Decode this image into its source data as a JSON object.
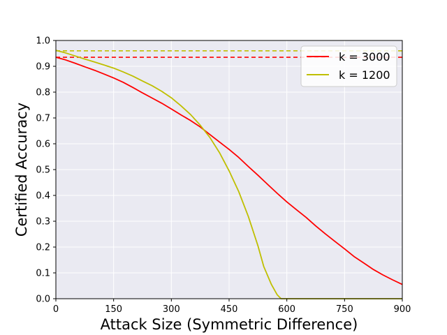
{
  "chart_data": {
    "type": "line",
    "title": "",
    "xlabel": "Attack Size (Symmetric Difference)",
    "ylabel": "Certified Accuracy",
    "xlim": [
      0,
      900
    ],
    "ylim": [
      0.0,
      1.0
    ],
    "x_ticks": [
      0,
      150,
      300,
      450,
      600,
      750,
      900
    ],
    "x_tick_labels": [
      "0",
      "150",
      "300",
      "450",
      "600",
      "750",
      "900"
    ],
    "y_ticks": [
      0.0,
      0.1,
      0.2,
      0.3,
      0.4,
      0.5,
      0.6,
      0.7,
      0.8,
      0.9,
      1.0
    ],
    "y_tick_labels": [
      "0.0",
      "0.1",
      "0.2",
      "0.3",
      "0.4",
      "0.5",
      "0.6",
      "0.7",
      "0.8",
      "0.9",
      "1.0"
    ],
    "grid": true,
    "background": "#eaeaf2",
    "legend_position": "top-right",
    "series": [
      {
        "name": "k = 3000",
        "color": "#ff0000",
        "baseline": 0.935,
        "x": [
          0,
          25,
          50,
          75,
          100,
          125,
          150,
          175,
          200,
          225,
          250,
          275,
          300,
          325,
          350,
          375,
          400,
          425,
          450,
          475,
          500,
          525,
          550,
          575,
          600,
          625,
          650,
          675,
          700,
          725,
          750,
          775,
          800,
          825,
          850,
          875,
          900
        ],
        "y": [
          0.935,
          0.925,
          0.912,
          0.898,
          0.885,
          0.87,
          0.855,
          0.838,
          0.818,
          0.797,
          0.777,
          0.757,
          0.735,
          0.712,
          0.69,
          0.665,
          0.636,
          0.607,
          0.578,
          0.547,
          0.512,
          0.478,
          0.443,
          0.408,
          0.375,
          0.345,
          0.315,
          0.282,
          0.251,
          0.222,
          0.193,
          0.163,
          0.138,
          0.113,
          0.092,
          0.073,
          0.055
        ]
      },
      {
        "name": "k = 1200",
        "color": "#bfbf00",
        "baseline": 0.96,
        "x": [
          0,
          25,
          50,
          75,
          100,
          125,
          150,
          175,
          200,
          225,
          250,
          275,
          300,
          325,
          350,
          375,
          400,
          425,
          450,
          475,
          500,
          525,
          540,
          560,
          575,
          585,
          600,
          700,
          800,
          900
        ],
        "y": [
          0.962,
          0.952,
          0.94,
          0.928,
          0.917,
          0.905,
          0.893,
          0.878,
          0.862,
          0.843,
          0.825,
          0.803,
          0.778,
          0.747,
          0.713,
          0.672,
          0.625,
          0.566,
          0.495,
          0.415,
          0.318,
          0.205,
          0.125,
          0.055,
          0.015,
          0.0,
          0.0,
          0.0,
          0.0,
          0.0
        ]
      }
    ]
  }
}
